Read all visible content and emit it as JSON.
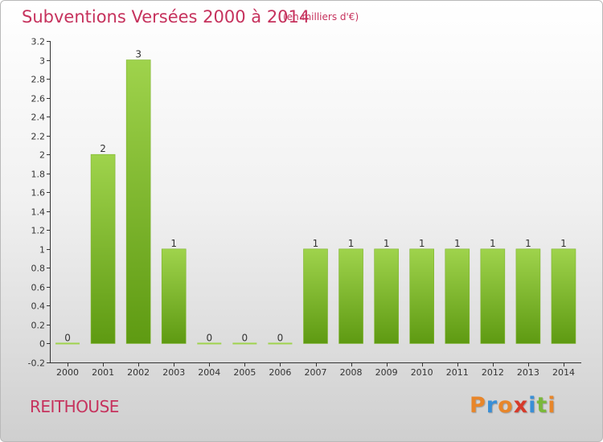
{
  "header": {
    "title": "Subventions Versées 2000 à 2014",
    "subtitle": "(en milliers d'€)"
  },
  "footer": {
    "place": "REITHOUSE",
    "logo_text": "Proxiti",
    "logo_colors": [
      "#e8862a",
      "#3a8fd6",
      "#e8862a",
      "#d63a2a",
      "#3a8fd6",
      "#7ab83a",
      "#e8862a"
    ]
  },
  "colors": {
    "bar_top": "#9fd34c",
    "bar_bottom": "#5e9a12",
    "title": "#c6325d",
    "axis": "#333333"
  },
  "chart_data": {
    "type": "bar",
    "categories": [
      "2000",
      "2001",
      "2002",
      "2003",
      "2004",
      "2005",
      "2006",
      "2007",
      "2008",
      "2009",
      "2010",
      "2011",
      "2012",
      "2013",
      "2014"
    ],
    "values": [
      0,
      2,
      3,
      1,
      0,
      0,
      0,
      1,
      1,
      1,
      1,
      1,
      1,
      1,
      1
    ],
    "data_labels": [
      "0",
      "2",
      "3",
      "1",
      "0",
      "0",
      "0",
      "1",
      "1",
      "1",
      "1",
      "1",
      "1",
      "1",
      "1"
    ],
    "y_ticks": [
      "3.2",
      "3",
      "2.8",
      "2.6",
      "2.4",
      "2.2",
      "2",
      "1.8",
      "1.6",
      "1.4",
      "1.2",
      "1",
      "0.8",
      "0.6",
      "0.4",
      "0.2",
      "0",
      "-0.2"
    ],
    "y_tick_values": [
      3.2,
      3,
      2.8,
      2.6,
      2.4,
      2.2,
      2,
      1.8,
      1.6,
      1.4,
      1.2,
      1,
      0.8,
      0.6,
      0.4,
      0.2,
      0,
      -0.2
    ],
    "ylim": [
      -0.2,
      3.2
    ],
    "grid": false,
    "xlabel": "",
    "ylabel": ""
  }
}
